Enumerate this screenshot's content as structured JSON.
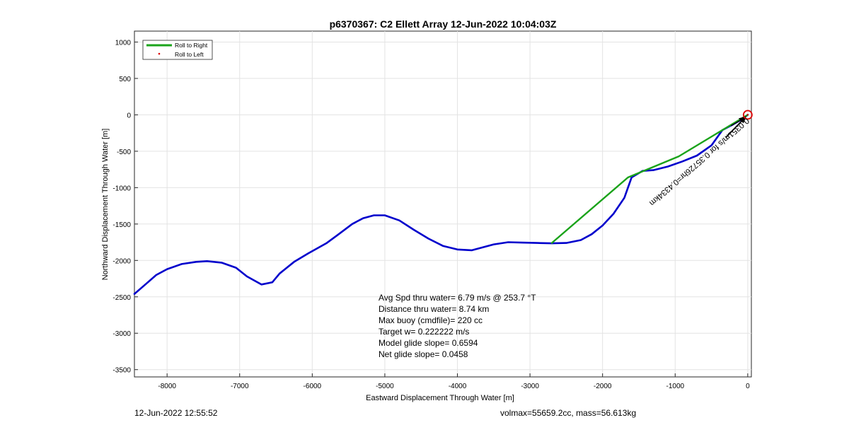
{
  "chart_data": {
    "type": "line",
    "title": "p6370367: C2 Ellett Array 12-Jun-2022 10:04:03Z",
    "xlabel": "Eastward Displacement Through Water [m]",
    "ylabel": "Northward Displacement Through Water [m]",
    "xlim": [
      -8450,
      50
    ],
    "ylim": [
      -3600,
      1150
    ],
    "xticks": [
      -8000,
      -7000,
      -6000,
      -5000,
      -4000,
      -3000,
      -2000,
      -1000,
      0
    ],
    "yticks": [
      1000,
      500,
      0,
      -500,
      -1000,
      -1500,
      -2000,
      -2500,
      -3000,
      -3500
    ],
    "grid": true,
    "legend_position": "top-left",
    "legend": [
      {
        "label": "Roll to Right",
        "color": "#1aa31a",
        "marker": "line"
      },
      {
        "label": "Roll to Left",
        "color": "#dd0000",
        "marker": "dot"
      }
    ],
    "series": [
      {
        "color": "#0000cc",
        "points": [
          [
            -8450,
            -2460
          ],
          [
            -8300,
            -2330
          ],
          [
            -8150,
            -2200
          ],
          [
            -8000,
            -2120
          ],
          [
            -7800,
            -2050
          ],
          [
            -7600,
            -2020
          ],
          [
            -7450,
            -2010
          ],
          [
            -7250,
            -2030
          ],
          [
            -7050,
            -2100
          ],
          [
            -6900,
            -2220
          ],
          [
            -6700,
            -2330
          ],
          [
            -6550,
            -2300
          ],
          [
            -6450,
            -2180
          ],
          [
            -6250,
            -2020
          ],
          [
            -6050,
            -1900
          ],
          [
            -5800,
            -1760
          ],
          [
            -5650,
            -1650
          ],
          [
            -5450,
            -1500
          ],
          [
            -5300,
            -1420
          ],
          [
            -5150,
            -1380
          ],
          [
            -5000,
            -1380
          ],
          [
            -4800,
            -1450
          ],
          [
            -4600,
            -1580
          ],
          [
            -4400,
            -1700
          ],
          [
            -4200,
            -1800
          ],
          [
            -4000,
            -1850
          ],
          [
            -3800,
            -1860
          ],
          [
            -3650,
            -1820
          ],
          [
            -3500,
            -1780
          ],
          [
            -3300,
            -1750
          ],
          [
            -3100,
            -1755
          ],
          [
            -2900,
            -1760
          ],
          [
            -2700,
            -1765
          ],
          [
            -2500,
            -1760
          ],
          [
            -2300,
            -1720
          ],
          [
            -2150,
            -1640
          ],
          [
            -2000,
            -1520
          ],
          [
            -1850,
            -1360
          ],
          [
            -1700,
            -1140
          ],
          [
            -1600,
            -860
          ],
          [
            -1450,
            -770
          ],
          [
            -1300,
            -760
          ],
          [
            -1100,
            -710
          ],
          [
            -900,
            -640
          ],
          [
            -700,
            -560
          ],
          [
            -500,
            -420
          ],
          [
            -350,
            -210
          ],
          [
            -200,
            -130
          ],
          [
            -80,
            -60
          ],
          [
            0,
            0
          ]
        ]
      },
      {
        "color": "#1aa31a",
        "points": [
          [
            -2700,
            -1760
          ],
          [
            -1650,
            -860
          ],
          [
            -950,
            -570
          ],
          [
            -250,
            -150
          ],
          [
            0,
            0
          ]
        ]
      }
    ],
    "end_marker": {
      "x": 0,
      "y": 0,
      "color": "#dd0000"
    },
    "arrow_label": "0.0351m/s for 0.35726hr=0.4334km",
    "info_lines": [
      "Avg Spd thru water=  6.79 m/s @ 253.7 °T",
      "Distance thru water=  8.74 km",
      "Max buoy (cmdfile)= 220 cc",
      "Target w= 0.222222 m/s",
      "Model glide slope= 0.6594",
      "Net glide slope= 0.0458"
    ]
  },
  "footer": {
    "left": "12-Jun-2022 12:55:52",
    "right": "volmax=55659.2cc, mass=56.613kg"
  }
}
